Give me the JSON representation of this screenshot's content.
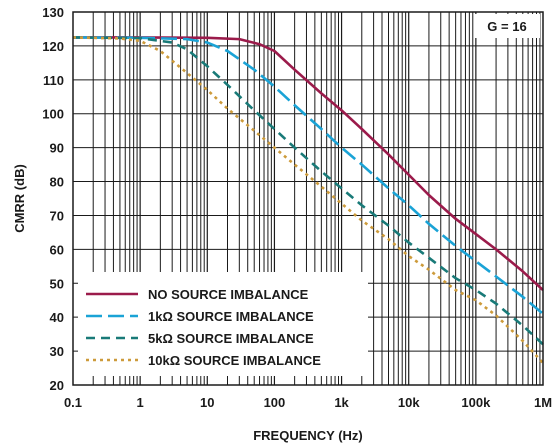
{
  "chart_data": {
    "type": "line",
    "xlabel": "FREQUENCY (Hz)",
    "ylabel": "CMRR (dB)",
    "x_scale": "log",
    "xlim": [
      0.1,
      1000000
    ],
    "ylim": [
      20,
      130
    ],
    "x_ticks": [
      {
        "value": 0.1,
        "label": "0.1"
      },
      {
        "value": 1,
        "label": "1"
      },
      {
        "value": 10,
        "label": "10"
      },
      {
        "value": 100,
        "label": "100"
      },
      {
        "value": 1000,
        "label": "1k"
      },
      {
        "value": 10000,
        "label": "10k"
      },
      {
        "value": 100000,
        "label": "100k"
      },
      {
        "value": 1000000,
        "label": "1M"
      }
    ],
    "y_ticks": [
      20,
      30,
      40,
      50,
      60,
      70,
      80,
      90,
      100,
      110,
      120,
      130
    ],
    "grid": true,
    "annotation": "G = 16",
    "legend_position": "bottom-left",
    "series": [
      {
        "name": "NO SOURCE IMBALANCE",
        "color": "#9b1b4b",
        "style": "solid",
        "x": [
          0.1,
          1,
          10,
          30,
          60,
          100,
          200,
          500,
          1000,
          2000,
          5000,
          10000,
          20000,
          50000,
          100000,
          200000,
          500000,
          1000000
        ],
        "y": [
          122.5,
          122.5,
          122.4,
          122,
          120.5,
          118.5,
          113,
          106,
          101,
          95.5,
          88,
          82,
          76,
          69,
          64.5,
          60,
          53.5,
          48
        ]
      },
      {
        "name": "1kΩ SOURCE IMBALANCE",
        "color": "#1aa3d6",
        "style": "longdash",
        "x": [
          0.1,
          1,
          5,
          10,
          20,
          50,
          100,
          200,
          500,
          1000,
          2000,
          5000,
          10000,
          20000,
          50000,
          100000,
          200000,
          500000,
          1000000
        ],
        "y": [
          122.5,
          122.4,
          122,
          121,
          118.5,
          113,
          108,
          102.5,
          95.5,
          90,
          85,
          78,
          73,
          67.5,
          61,
          56.5,
          52,
          46,
          41
        ]
      },
      {
        "name": "5kΩ SOURCE IMBALANCE",
        "color": "#197a78",
        "style": "dash",
        "x": [
          0.1,
          1,
          3,
          5,
          10,
          20,
          50,
          100,
          200,
          500,
          1000,
          2000,
          5000,
          10000,
          20000,
          50000,
          100000,
          200000,
          500000,
          1000000
        ],
        "y": [
          122.5,
          122.3,
          121,
          119,
          114,
          108.5,
          101,
          95.5,
          90,
          83,
          78,
          73,
          67,
          62,
          57.5,
          51.5,
          48,
          44,
          37.5,
          32
        ]
      },
      {
        "name": "10kΩ SOURCE IMBALANCE",
        "color": "#cd9b3b",
        "style": "dot",
        "x": [
          0.1,
          0.5,
          1,
          2,
          5,
          10,
          20,
          50,
          100,
          200,
          500,
          1000,
          2000,
          5000,
          10000,
          20000,
          50000,
          100000,
          200000,
          500000,
          1000000
        ],
        "y": [
          122.5,
          122.2,
          121.5,
          118.5,
          112,
          107,
          101.5,
          95,
          90,
          85,
          78.5,
          73.5,
          68.5,
          63,
          58,
          54,
          48,
          45,
          40.5,
          33,
          26.5
        ]
      }
    ]
  }
}
